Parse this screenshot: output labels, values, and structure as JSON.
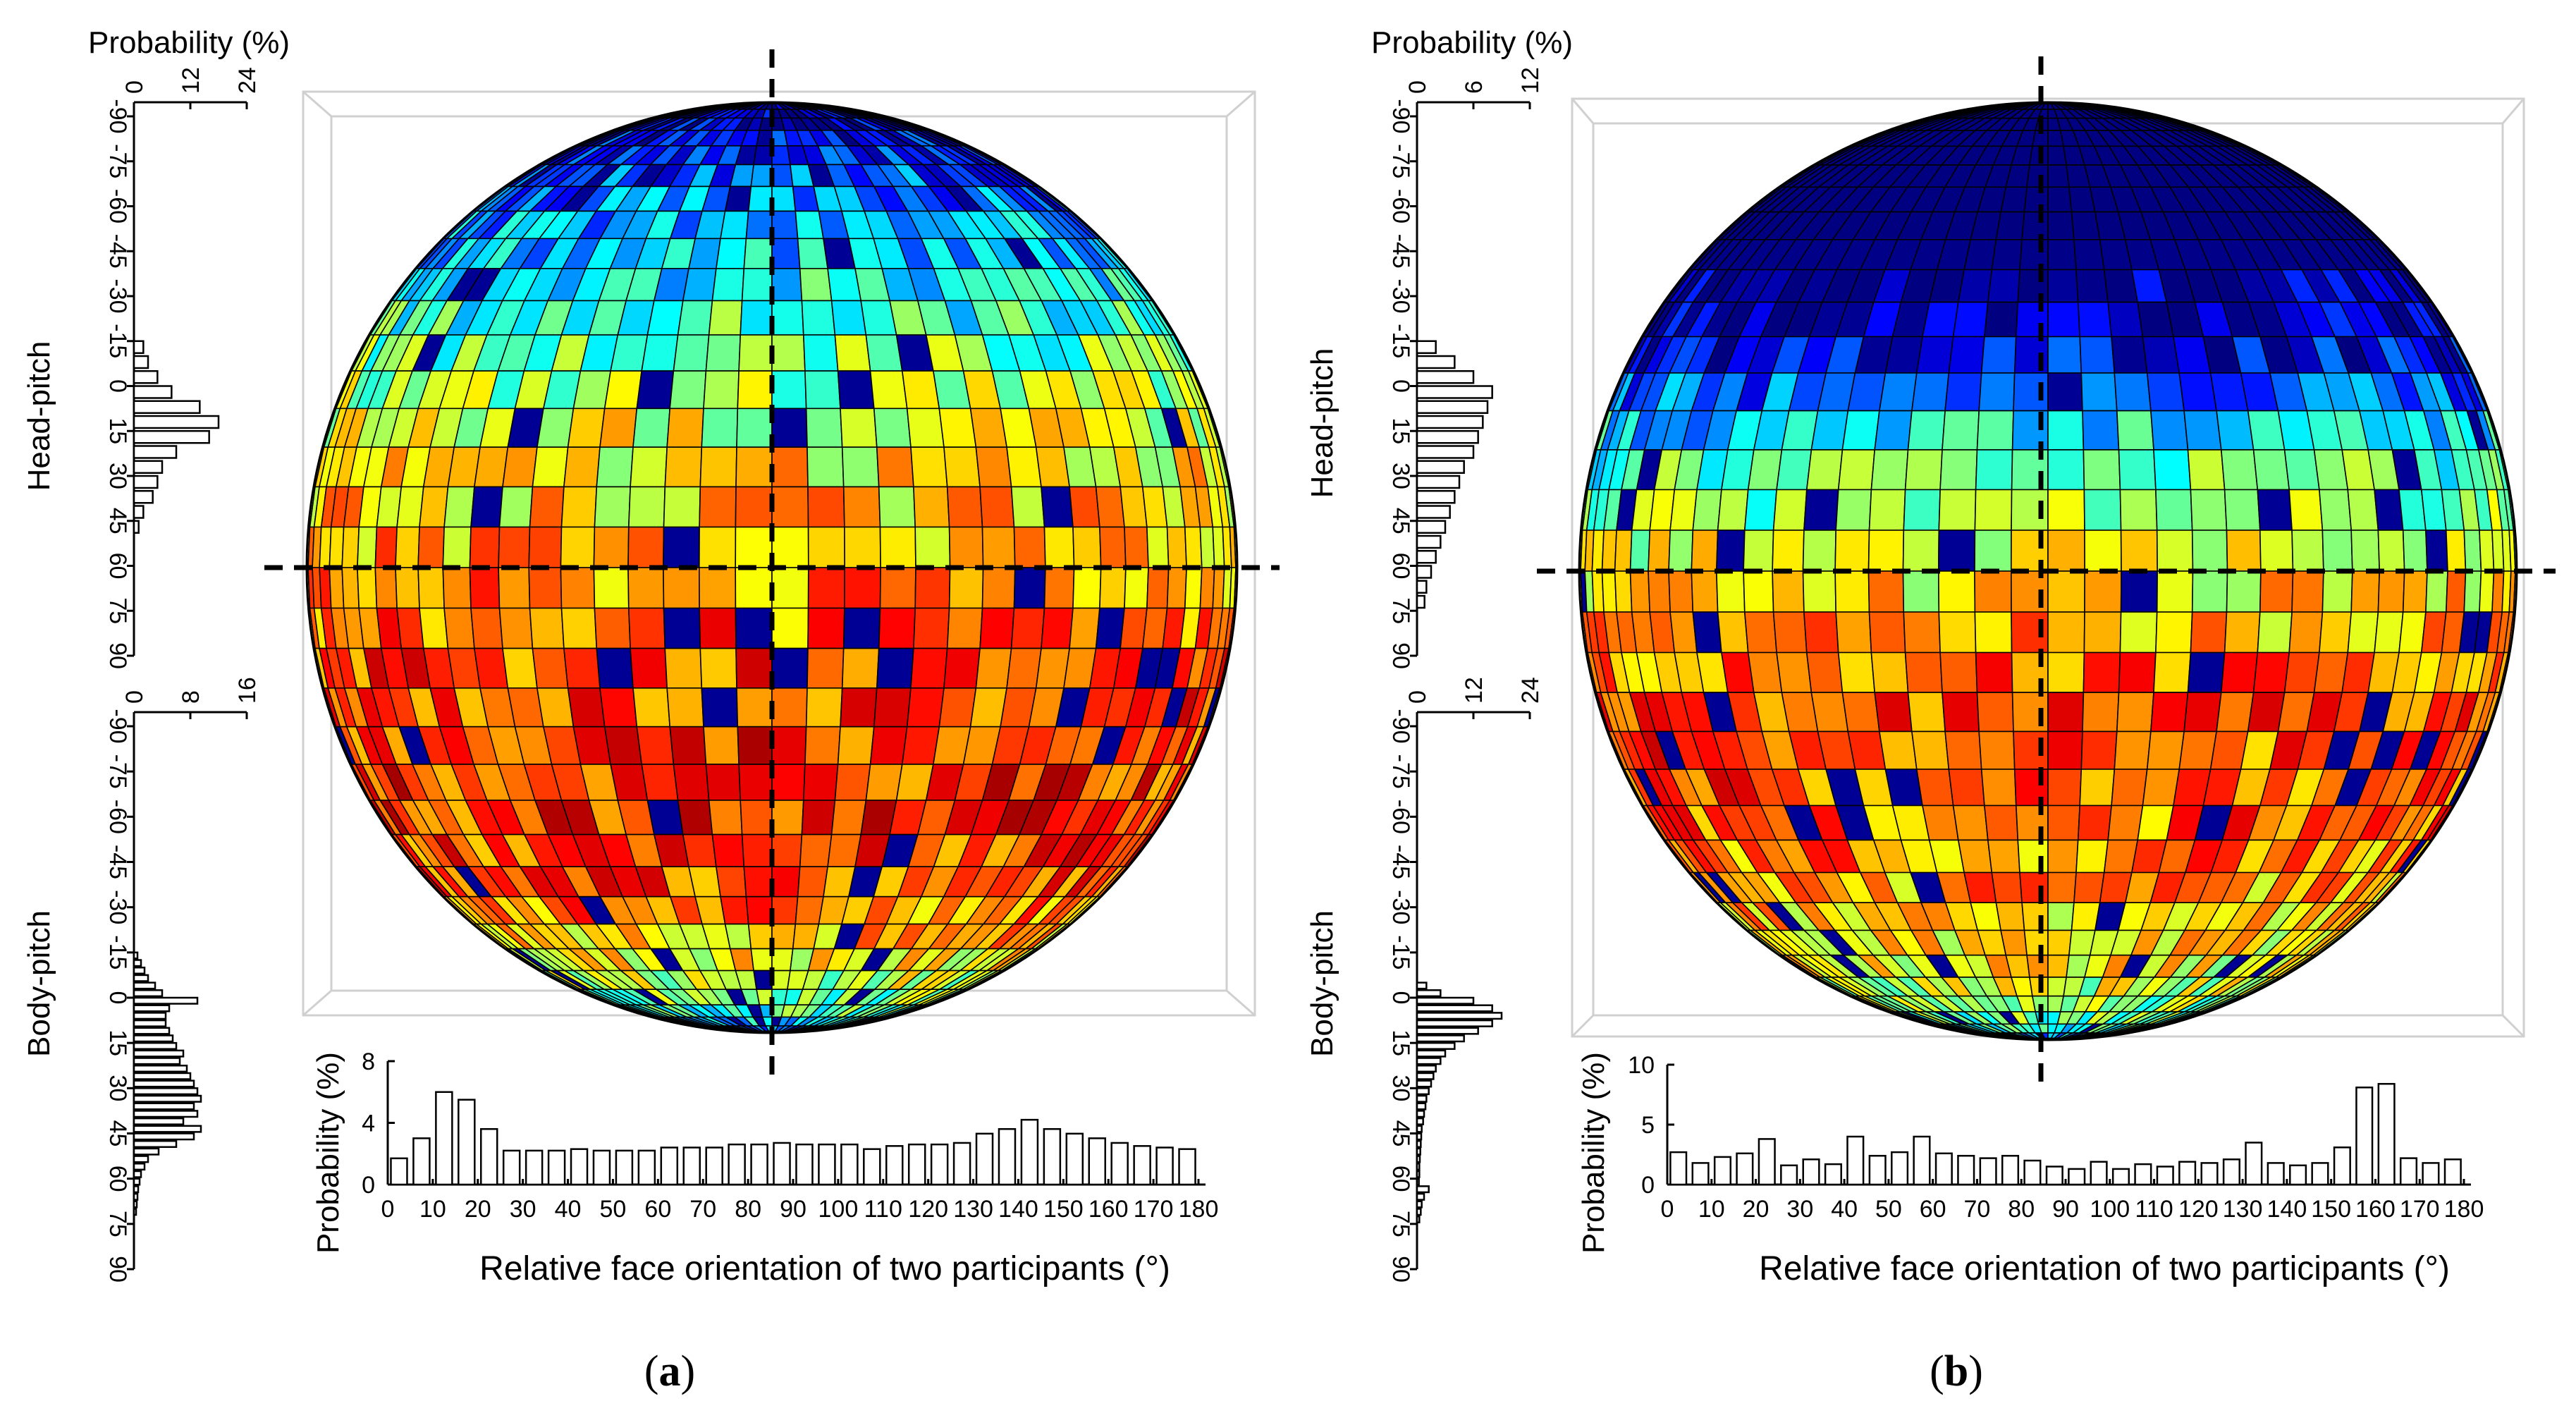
{
  "figure": {
    "panels": [
      {
        "caption_open": "(",
        "caption_letter": "a",
        "caption_close": ")"
      },
      {
        "caption_open": "(",
        "caption_letter": "b",
        "caption_close": ")"
      }
    ]
  },
  "chart_data": [
    {
      "panel": "a",
      "type": "bar",
      "title": "",
      "xlabel": "Relative face orientation of two participants (°)",
      "ylabel": "Probability (%)",
      "x": [
        2.5,
        7.5,
        12.5,
        17.5,
        22.5,
        27.5,
        32.5,
        37.5,
        42.5,
        47.5,
        52.5,
        57.5,
        62.5,
        67.5,
        72.5,
        77.5,
        82.5,
        87.5,
        92.5,
        97.5,
        102.5,
        107.5,
        112.5,
        117.5,
        122.5,
        127.5,
        132.5,
        137.5,
        142.5,
        147.5,
        152.5,
        157.5,
        162.5,
        167.5,
        172.5,
        177.5
      ],
      "values": [
        1.7,
        3.0,
        6.0,
        5.5,
        3.6,
        2.2,
        2.2,
        2.2,
        2.3,
        2.2,
        2.2,
        2.2,
        2.4,
        2.4,
        2.4,
        2.6,
        2.6,
        2.7,
        2.6,
        2.6,
        2.6,
        2.3,
        2.5,
        2.6,
        2.6,
        2.7,
        3.3,
        3.6,
        4.2,
        3.6,
        3.3,
        3.0,
        2.7,
        2.5,
        2.4,
        2.3
      ],
      "xticks": [
        0,
        10,
        20,
        30,
        40,
        50,
        60,
        70,
        80,
        90,
        100,
        110,
        120,
        130,
        140,
        150,
        160,
        170,
        180
      ],
      "yticks": [
        0,
        4,
        8
      ],
      "ylim": [
        0,
        8
      ],
      "head_pitch": {
        "label": "Head-pitch",
        "axis_label": "Probability (%)",
        "prob_ticks": [
          0,
          12,
          24
        ],
        "prob_max": 24,
        "pitch_ticks": [
          -90,
          -75,
          -60,
          -45,
          -30,
          -15,
          0,
          15,
          30,
          45,
          60,
          75,
          90
        ],
        "pitch_bins": [
          -15,
          -10,
          -5,
          0,
          5,
          10,
          15,
          20,
          25,
          30,
          35,
          40,
          45
        ],
        "values": [
          2,
          3,
          5,
          8,
          14,
          18,
          16,
          9,
          6,
          5,
          4,
          2,
          1
        ]
      },
      "body_pitch": {
        "label": "Body-pitch",
        "axis_label": "Probability (%)",
        "prob_ticks": [
          0,
          8,
          16
        ],
        "prob_max": 16,
        "pitch_ticks": [
          -90,
          -75,
          -60,
          -45,
          -30,
          -15,
          0,
          15,
          30,
          45,
          60,
          75,
          90
        ],
        "pitch_bins": [
          -15,
          -12.5,
          -10,
          -7.5,
          -5,
          -2.5,
          0,
          2.5,
          5,
          7.5,
          10,
          12.5,
          15,
          17.5,
          20,
          22.5,
          25,
          27.5,
          30,
          32.5,
          35,
          37.5,
          40,
          42.5,
          45,
          47.5,
          50,
          52.5,
          55,
          57.5,
          60,
          62.5,
          65,
          67.5,
          70
        ],
        "values": [
          0.5,
          1,
          1.5,
          2,
          3,
          4,
          9,
          5,
          4.5,
          4.5,
          5,
          5.5,
          6,
          7,
          6.5,
          7.5,
          8,
          8.5,
          9,
          9.5,
          8.5,
          9,
          7,
          9.5,
          8.5,
          6,
          3.5,
          2,
          1.5,
          1,
          0.8,
          0.6,
          0.5,
          0.4,
          0.3
        ]
      },
      "sphere_heatmap": {
        "colormap": "jet",
        "rows_pitch_deg": [
          -90,
          -75,
          -60,
          -45,
          -30,
          -15,
          0,
          15,
          30,
          45,
          60,
          75,
          90
        ],
        "row_intensity": [
          0.0,
          0.05,
          0.18,
          0.3,
          0.45,
          0.62,
          0.72,
          0.8,
          0.84,
          0.78,
          0.6,
          0.4,
          0.05
        ]
      }
    },
    {
      "panel": "b",
      "type": "bar",
      "title": "",
      "xlabel": "Relative face orientation of two participants (°)",
      "ylabel": "Probability (%)",
      "x": [
        2.5,
        7.5,
        12.5,
        17.5,
        22.5,
        27.5,
        32.5,
        37.5,
        42.5,
        47.5,
        52.5,
        57.5,
        62.5,
        67.5,
        72.5,
        77.5,
        82.5,
        87.5,
        92.5,
        97.5,
        102.5,
        107.5,
        112.5,
        117.5,
        122.5,
        127.5,
        132.5,
        137.5,
        142.5,
        147.5,
        152.5,
        157.5,
        162.5,
        167.5,
        172.5,
        177.5
      ],
      "values": [
        2.7,
        1.8,
        2.3,
        2.6,
        3.8,
        1.6,
        2.1,
        1.7,
        4.0,
        2.4,
        2.7,
        4.0,
        2.6,
        2.4,
        2.2,
        2.4,
        2.0,
        1.5,
        1.3,
        1.9,
        1.3,
        1.7,
        1.5,
        1.9,
        1.8,
        2.1,
        3.5,
        1.8,
        1.6,
        1.8,
        3.1,
        8.1,
        8.4,
        2.2,
        1.8,
        2.1
      ],
      "xticks": [
        0,
        10,
        20,
        30,
        40,
        50,
        60,
        70,
        80,
        90,
        100,
        110,
        120,
        130,
        140,
        150,
        160,
        170,
        180
      ],
      "yticks": [
        0,
        5,
        10
      ],
      "ylim": [
        0,
        10
      ],
      "head_pitch": {
        "label": "Head-pitch",
        "axis_label": "Probability (%)",
        "prob_ticks": [
          0,
          6,
          12
        ],
        "prob_max": 12,
        "pitch_ticks": [
          -90,
          -75,
          -60,
          -45,
          -30,
          -15,
          0,
          15,
          30,
          45,
          60,
          75,
          90
        ],
        "pitch_bins": [
          -15,
          -10,
          -5,
          0,
          5,
          10,
          15,
          20,
          25,
          30,
          35,
          40,
          45,
          50,
          55,
          60,
          65,
          70
        ],
        "values": [
          2,
          4,
          6,
          8,
          7.5,
          7,
          6.5,
          6,
          5,
          4.5,
          4,
          3.5,
          3,
          2.5,
          2,
          1.5,
          1,
          0.8
        ]
      },
      "body_pitch": {
        "label": "Body-pitch",
        "axis_label": "Probability (%)",
        "prob_ticks": [
          0,
          12,
          24
        ],
        "prob_max": 24,
        "pitch_ticks": [
          -90,
          -75,
          -60,
          -45,
          -30,
          -15,
          0,
          15,
          30,
          45,
          60,
          75,
          90
        ],
        "pitch_bins": [
          -5,
          -2.5,
          0,
          2.5,
          5,
          7.5,
          10,
          12.5,
          15,
          17.5,
          20,
          22.5,
          25,
          27.5,
          30,
          32.5,
          35,
          37.5,
          40,
          42.5,
          45,
          47.5,
          50,
          52.5,
          55,
          57.5,
          60,
          62.5,
          65,
          67.5,
          70,
          72.5
        ],
        "values": [
          2,
          5,
          12,
          16,
          18,
          16,
          13,
          10,
          8,
          6,
          5,
          4,
          3.5,
          3,
          2.5,
          2,
          1.8,
          1.5,
          1.3,
          1,
          0.9,
          0.8,
          0.7,
          0.6,
          0.5,
          0.5,
          0.4,
          2.5,
          1.5,
          1,
          0.8,
          0.5
        ]
      },
      "sphere_heatmap": {
        "colormap": "jet",
        "rows_pitch_deg": [
          -90,
          -75,
          -60,
          -45,
          -30,
          -15,
          0,
          15,
          30,
          45,
          60,
          75,
          90
        ],
        "row_intensity": [
          0.0,
          0.0,
          0.0,
          0.0,
          0.05,
          0.4,
          0.62,
          0.8,
          0.78,
          0.7,
          0.6,
          0.45,
          0.1
        ]
      }
    }
  ]
}
